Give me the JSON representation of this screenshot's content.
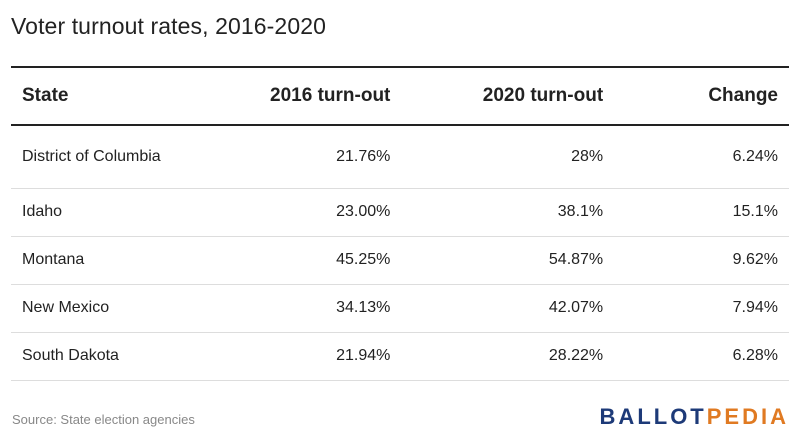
{
  "title": "Voter turnout rates, 2016-2020",
  "columns": [
    "State",
    "2016 turn-out",
    "2020 turn-out",
    "Change"
  ],
  "rows": [
    {
      "state": "District of Columbia",
      "t2016": "21.76%",
      "t2020": "28%",
      "change": "6.24%"
    },
    {
      "state": "Idaho",
      "t2016": "23.00%",
      "t2020": "38.1%",
      "change": "15.1%"
    },
    {
      "state": "Montana",
      "t2016": "45.25%",
      "t2020": "54.87%",
      "change": "9.62%"
    },
    {
      "state": "New Mexico",
      "t2016": "34.13%",
      "t2020": "42.07%",
      "change": "7.94%"
    },
    {
      "state": "South Dakota",
      "t2016": "21.94%",
      "t2020": "28.22%",
      "change": "6.28%"
    }
  ],
  "source": "Source: State election agencies",
  "logo": {
    "part1": "BALLOT",
    "part2": "PEDIA",
    "color1": "#1d3a78",
    "color2": "#e07a22"
  },
  "chart_data": {
    "type": "table",
    "title": "Voter turnout rates, 2016-2020",
    "columns": [
      "State",
      "2016 turn-out",
      "2020 turn-out",
      "Change"
    ],
    "categories": [
      "District of Columbia",
      "Idaho",
      "Montana",
      "New Mexico",
      "South Dakota"
    ],
    "series": [
      {
        "name": "2016 turn-out",
        "values": [
          21.76,
          23.0,
          45.25,
          34.13,
          21.94
        ]
      },
      {
        "name": "2020 turn-out",
        "values": [
          28,
          38.1,
          54.87,
          42.07,
          28.22
        ]
      },
      {
        "name": "Change",
        "values": [
          6.24,
          15.1,
          9.62,
          7.94,
          6.28
        ]
      }
    ]
  }
}
